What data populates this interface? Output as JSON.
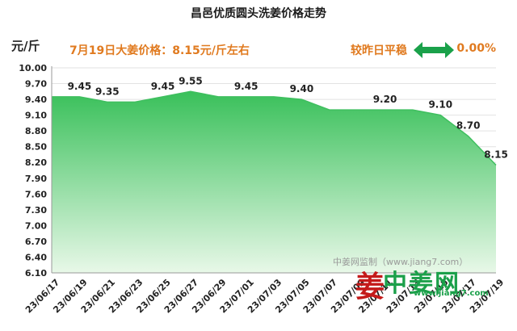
{
  "chart_data": {
    "type": "area",
    "title": "昌邑优质圆头洗姜价格走势",
    "ylabel": "元/斤",
    "ylim": [
      6.1,
      10.0
    ],
    "yticks": [
      "10.00",
      "9.70",
      "9.40",
      "9.10",
      "8.80",
      "8.50",
      "8.20",
      "7.90",
      "7.60",
      "7.30",
      "7.00",
      "6.70",
      "6.40",
      "6.10"
    ],
    "x": [
      "23/06/17",
      "23/06/19",
      "23/06/21",
      "23/06/23",
      "23/06/25",
      "23/06/27",
      "23/06/29",
      "23/07/01",
      "23/07/03",
      "23/07/05",
      "23/07/07",
      "23/07/09",
      "23/07/11",
      "23/07/13",
      "23/07/15",
      "23/07/17",
      "23/07/19"
    ],
    "series": [
      {
        "values": [
          9.45,
          9.45,
          9.35,
          9.35,
          9.45,
          9.55,
          9.45,
          9.45,
          9.45,
          9.4,
          9.2,
          9.2,
          9.2,
          9.2,
          9.1,
          8.7,
          8.15
        ]
      }
    ],
    "data_labels": [
      {
        "label": "9.45",
        "index": 1
      },
      {
        "label": "9.35",
        "index": 2
      },
      {
        "label": "9.45",
        "index": 4
      },
      {
        "label": "9.55",
        "index": 5
      },
      {
        "label": "9.45",
        "index": 7
      },
      {
        "label": "9.40",
        "index": 9
      },
      {
        "label": "9.20",
        "index": 12
      },
      {
        "label": "9.10",
        "index": 14
      },
      {
        "label": "8.70",
        "index": 15
      },
      {
        "label": "8.15",
        "index": 16
      }
    ],
    "grid": true,
    "colors": {
      "line": "#3fbf5f",
      "fill_top": "#39c05a",
      "fill_bottom": "#e8f8e8"
    }
  },
  "annotation_left": "7月19日大姜价格：8.15元/斤左右",
  "annotation_right": "较昨日平稳",
  "change_pct": "0.00%",
  "watermark": "中姜网监制（www.jiang7.com）",
  "logo": {
    "mark": "姜",
    "text": "中姜网",
    "url": "www.jiang7.com"
  }
}
